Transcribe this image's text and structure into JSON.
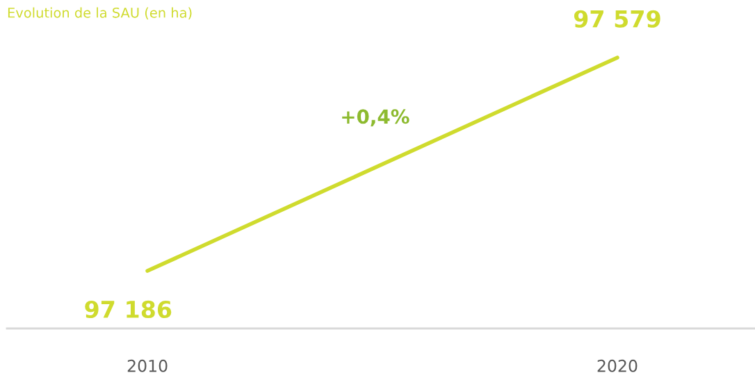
{
  "chart_data": {
    "type": "line",
    "title": "Evolution de la SAU (en ha)",
    "categories": [
      "2010",
      "2020"
    ],
    "series": [
      {
        "color": "#cfdb2e",
        "values": [
          97186,
          97579
        ]
      }
    ],
    "data_labels": true,
    "tick_labels": "x",
    "grid": false,
    "legend": false,
    "marker": "none",
    "line_style": "solid",
    "annotations": [
      "+0,4%"
    ]
  }
}
